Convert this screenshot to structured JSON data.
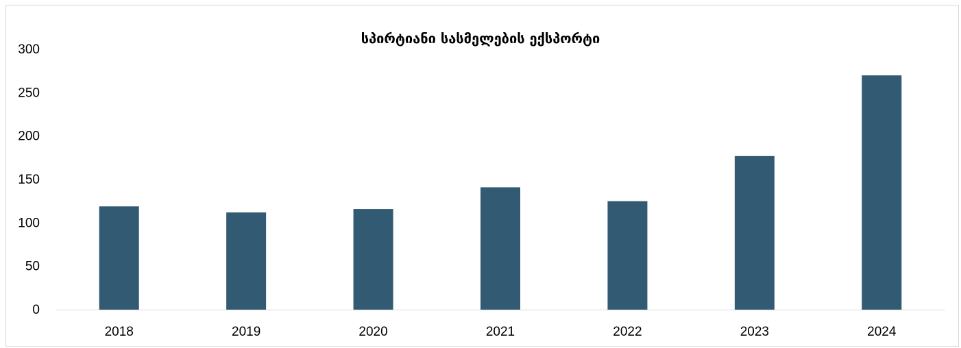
{
  "chart_data": {
    "type": "bar",
    "title": "სპირტიანი სასმელების ექსპორტი",
    "xlabel": "",
    "ylabel": "",
    "categories": [
      "2018",
      "2019",
      "2020",
      "2021",
      "2022",
      "2023",
      "2024"
    ],
    "series": [
      {
        "values": [
          119,
          112,
          116,
          141,
          125,
          177,
          270
        ]
      }
    ],
    "ylim": [
      0,
      300
    ],
    "yticks": [
      0,
      50,
      100,
      150,
      200,
      250,
      300
    ],
    "grid": false,
    "legend": "none",
    "colors": {
      "bar": "#335a73",
      "axis": "#d9d9d9",
      "text": "#000000"
    }
  }
}
